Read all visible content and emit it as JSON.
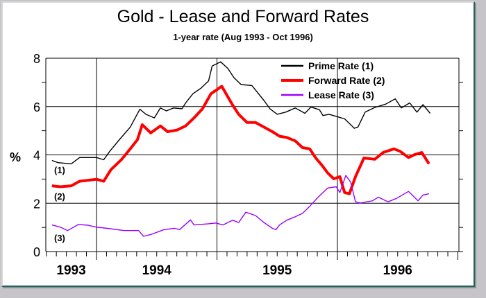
{
  "chart_data": {
    "type": "line",
    "title": "Gold - Lease and Forward Rates",
    "subtitle": "1-year rate  (Aug 1993 - Oct 1996)",
    "ylabel": "%",
    "xlabel": "",
    "ylim": [
      0,
      8
    ],
    "xlim": [
      1993.58,
      1997.04
    ],
    "yticks": [
      "0",
      "2",
      "4",
      "6",
      "8"
    ],
    "xtick_labels": [
      {
        "label": "1993",
        "at": 1993.79
      },
      {
        "label": "1994",
        "at": 1994.5
      },
      {
        "label": "1995",
        "at": 1995.5
      },
      {
        "label": "1996",
        "at": 1996.5
      }
    ],
    "grid": true,
    "legend_position": "top-right",
    "series": [
      {
        "name": "Prime Rate (1)",
        "label": "(1)",
        "color": "#000000",
        "x": [
          1993.63,
          1993.68,
          1993.79,
          1993.86,
          1994.0,
          1994.06,
          1994.11,
          1994.19,
          1994.28,
          1994.36,
          1994.41,
          1994.48,
          1994.53,
          1994.58,
          1994.64,
          1994.71,
          1994.74,
          1994.8,
          1994.87,
          1994.93,
          1994.96,
          1995.03,
          1995.09,
          1995.14,
          1995.2,
          1995.29,
          1995.39,
          1995.44,
          1995.5,
          1995.57,
          1995.65,
          1995.73,
          1995.78,
          1995.85,
          1995.88,
          1995.93,
          1996.0,
          1996.06,
          1996.14,
          1996.17,
          1996.23,
          1996.31,
          1996.4,
          1996.48,
          1996.53,
          1996.6,
          1996.66,
          1996.71,
          1996.77
        ],
        "y": [
          3.77,
          3.68,
          3.63,
          3.89,
          3.89,
          3.8,
          4.15,
          4.63,
          5.15,
          5.89,
          5.68,
          5.53,
          5.94,
          5.82,
          5.94,
          5.91,
          6.15,
          6.53,
          6.77,
          7.06,
          7.68,
          7.85,
          7.58,
          7.2,
          6.91,
          6.87,
          6.25,
          5.91,
          5.68,
          5.77,
          5.94,
          5.72,
          5.98,
          5.87,
          5.63,
          5.68,
          5.58,
          5.49,
          5.1,
          5.15,
          5.77,
          5.96,
          6.1,
          6.32,
          5.94,
          6.15,
          5.77,
          6.08,
          5.72
        ]
      },
      {
        "name": "Forward Rate (2)",
        "label": "(2)",
        "color": "#ff0000",
        "x": [
          1993.63,
          1993.7,
          1993.79,
          1993.86,
          1994.0,
          1994.06,
          1994.12,
          1994.21,
          1994.28,
          1994.34,
          1994.38,
          1994.45,
          1994.53,
          1994.59,
          1994.67,
          1994.74,
          1994.81,
          1994.88,
          1994.95,
          1995.04,
          1995.13,
          1995.18,
          1995.25,
          1995.32,
          1995.39,
          1995.46,
          1995.52,
          1995.58,
          1995.65,
          1995.71,
          1995.77,
          1995.82,
          1995.87,
          1995.92,
          1995.97,
          1996.02,
          1996.06,
          1996.1,
          1996.15,
          1996.22,
          1996.31,
          1996.38,
          1996.47,
          1996.52,
          1996.59,
          1996.64,
          1996.7,
          1996.76
        ],
        "y": [
          2.72,
          2.68,
          2.72,
          2.91,
          2.99,
          2.91,
          3.39,
          3.82,
          4.25,
          4.63,
          5.25,
          4.91,
          5.2,
          4.96,
          5.03,
          5.2,
          5.53,
          5.91,
          6.53,
          6.84,
          6.06,
          5.68,
          5.34,
          5.34,
          5.15,
          4.96,
          4.77,
          4.72,
          4.58,
          4.3,
          4.25,
          3.87,
          3.58,
          3.25,
          3.01,
          3.1,
          2.44,
          2.39,
          3.1,
          3.87,
          3.82,
          4.1,
          4.25,
          4.15,
          3.89,
          4.01,
          4.1,
          3.63
        ]
      },
      {
        "name": "Lease Rate (3)",
        "label": "(3)",
        "color": "#9900ff",
        "x": [
          1993.63,
          1993.7,
          1993.76,
          1993.85,
          1993.93,
          1994.0,
          1994.09,
          1994.23,
          1994.35,
          1994.39,
          1994.46,
          1994.56,
          1994.65,
          1994.69,
          1994.78,
          1994.81,
          1994.93,
          1994.99,
          1995.05,
          1995.13,
          1995.18,
          1995.24,
          1995.32,
          1995.39,
          1995.46,
          1995.49,
          1995.52,
          1995.58,
          1995.65,
          1995.71,
          1995.77,
          1995.84,
          1995.92,
          1995.99,
          1996.02,
          1996.07,
          1996.11,
          1996.15,
          1996.19,
          1996.29,
          1996.34,
          1996.42,
          1996.49,
          1996.59,
          1996.67,
          1996.71,
          1996.76
        ],
        "y": [
          1.1,
          1.01,
          0.87,
          1.12,
          1.09,
          1.01,
          0.96,
          0.87,
          0.87,
          0.63,
          0.72,
          0.91,
          0.96,
          0.91,
          1.31,
          1.1,
          1.15,
          1.18,
          1.1,
          1.3,
          1.2,
          1.63,
          1.49,
          1.2,
          0.96,
          0.91,
          1.1,
          1.3,
          1.44,
          1.58,
          1.87,
          2.25,
          2.63,
          2.68,
          2.44,
          3.15,
          2.87,
          2.06,
          2.01,
          2.1,
          2.25,
          2.06,
          2.2,
          2.49,
          2.1,
          2.34,
          2.39
        ]
      }
    ]
  }
}
